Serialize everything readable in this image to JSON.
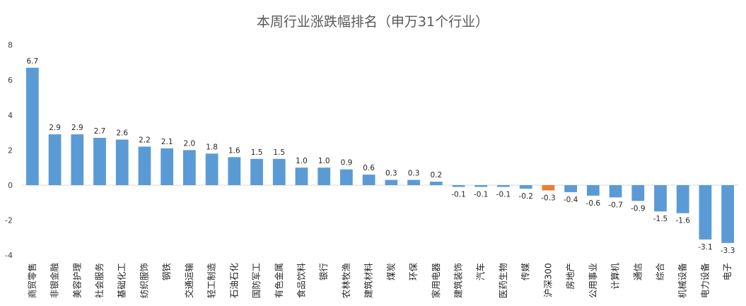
{
  "chart_data": {
    "type": "bar",
    "title": "本周行业涨跌幅排名（申万31个行业）",
    "xlabel": "",
    "ylabel": "",
    "ylim": [
      -5,
      8
    ],
    "yticks": [
      -4,
      -2,
      0,
      2,
      4,
      6,
      8
    ],
    "grid": false,
    "legend": "none",
    "colors": {
      "default": "#5b9bd5",
      "highlight": "#ed7d31"
    },
    "highlight_category": "沪深300",
    "categories": [
      "商贸零售",
      "非银金融",
      "美容护理",
      "社会服务",
      "基础化工",
      "纺织服饰",
      "钢铁",
      "交通运输",
      "轻工制造",
      "石油石化",
      "国防军工",
      "有色金属",
      "食品饮料",
      "银行",
      "农林牧渔",
      "建筑材料",
      "煤炭",
      "环保",
      "家用电器",
      "建筑装饰",
      "汽车",
      "医药生物",
      "传媒",
      "沪深300",
      "房地产",
      "公用事业",
      "计算机",
      "通信",
      "综合",
      "机械设备",
      "电力设备",
      "电子"
    ],
    "values": [
      6.7,
      2.9,
      2.9,
      2.7,
      2.6,
      2.2,
      2.1,
      2.0,
      1.8,
      1.6,
      1.5,
      1.5,
      1.0,
      1.0,
      0.9,
      0.6,
      0.3,
      0.3,
      0.2,
      -0.1,
      -0.1,
      -0.1,
      -0.2,
      -0.3,
      -0.4,
      -0.6,
      -0.7,
      -0.9,
      -1.5,
      -1.6,
      -3.1,
      -3.3
    ],
    "data_labels": [
      "6.7",
      "2.9",
      "2.9",
      "2.7",
      "2.6",
      "2.2",
      "2.1",
      "2.0",
      "1.8",
      "1.6",
      "1.5",
      "1.5",
      "1.0",
      "1.0",
      "0.9",
      "0.6",
      "0.3",
      "0.3",
      "0.2",
      "-0.1",
      "-0.1",
      "-0.1",
      "-0.2",
      "-0.3",
      "-0.4",
      "-0.6",
      "-0.7",
      "-0.9",
      "-1.5",
      "-1.6",
      "-3.1",
      "-3.3"
    ]
  }
}
